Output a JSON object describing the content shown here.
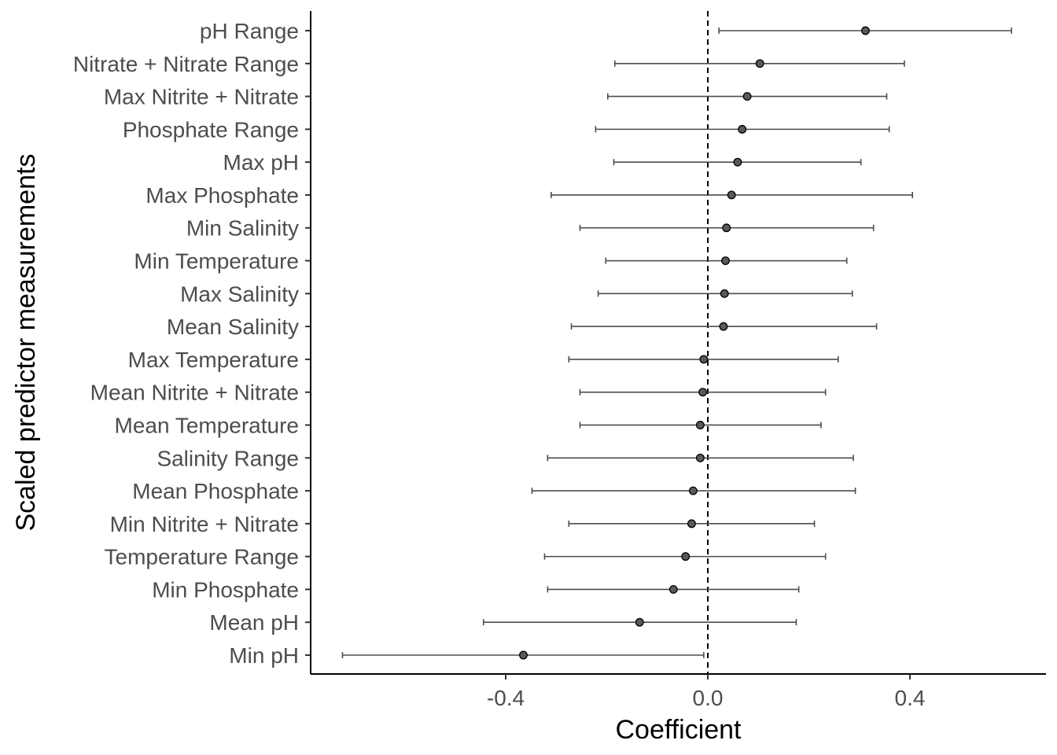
{
  "chart_data": {
    "type": "scatter",
    "subtype": "coefficient-errorbar",
    "title": "",
    "xlabel": "Coefficient",
    "ylabel": "Scaled predictor measurements",
    "xlim": [
      -0.79,
      0.67
    ],
    "x_ticks": [
      {
        "value": -0.4,
        "label": "-0.4"
      },
      {
        "value": 0.0,
        "label": "0.0"
      },
      {
        "value": 0.4,
        "label": "0.4"
      }
    ],
    "reference_line": {
      "x": 0,
      "style": "dashed"
    },
    "grid": false,
    "legend": "none",
    "point_color": "#595959",
    "bar_color": "#4d4d4d",
    "series": [
      {
        "points": [
          {
            "label": "pH Range",
            "estimate": 0.312,
            "lower": 0.022,
            "upper": 0.601
          },
          {
            "label": "Nitrate + Nitrate Range",
            "estimate": 0.103,
            "lower": -0.184,
            "upper": 0.389
          },
          {
            "label": "Max Nitrite + Nitrate",
            "estimate": 0.078,
            "lower": -0.198,
            "upper": 0.354
          },
          {
            "label": "Phosphate Range",
            "estimate": 0.068,
            "lower": -0.222,
            "upper": 0.359
          },
          {
            "label": "Max pH",
            "estimate": 0.059,
            "lower": -0.186,
            "upper": 0.303
          },
          {
            "label": "Max Phosphate",
            "estimate": 0.047,
            "lower": -0.31,
            "upper": 0.405
          },
          {
            "label": "Min Salinity",
            "estimate": 0.037,
            "lower": -0.253,
            "upper": 0.328
          },
          {
            "label": "Min Temperature",
            "estimate": 0.035,
            "lower": -0.202,
            "upper": 0.275
          },
          {
            "label": "Max Salinity",
            "estimate": 0.033,
            "lower": -0.217,
            "upper": 0.286
          },
          {
            "label": "Mean Salinity",
            "estimate": 0.031,
            "lower": -0.27,
            "upper": 0.334
          },
          {
            "label": "Max Temperature",
            "estimate": -0.008,
            "lower": -0.275,
            "upper": 0.258
          },
          {
            "label": "Mean Nitrite + Nitrate",
            "estimate": -0.01,
            "lower": -0.253,
            "upper": 0.233
          },
          {
            "label": "Mean Temperature",
            "estimate": -0.015,
            "lower": -0.253,
            "upper": 0.224
          },
          {
            "label": "Salinity Range",
            "estimate": -0.015,
            "lower": -0.317,
            "upper": 0.288
          },
          {
            "label": "Mean Phosphate",
            "estimate": -0.029,
            "lower": -0.348,
            "upper": 0.292
          },
          {
            "label": "Min Nitrite + Nitrate",
            "estimate": -0.032,
            "lower": -0.275,
            "upper": 0.211
          },
          {
            "label": "Temperature Range",
            "estimate": -0.044,
            "lower": -0.323,
            "upper": 0.233
          },
          {
            "label": "Min Phosphate",
            "estimate": -0.068,
            "lower": -0.317,
            "upper": 0.18
          },
          {
            "label": "Mean pH",
            "estimate": -0.135,
            "lower": -0.444,
            "upper": 0.175
          },
          {
            "label": "Min pH",
            "estimate": -0.365,
            "lower": -0.723,
            "upper": -0.008
          }
        ]
      }
    ]
  }
}
